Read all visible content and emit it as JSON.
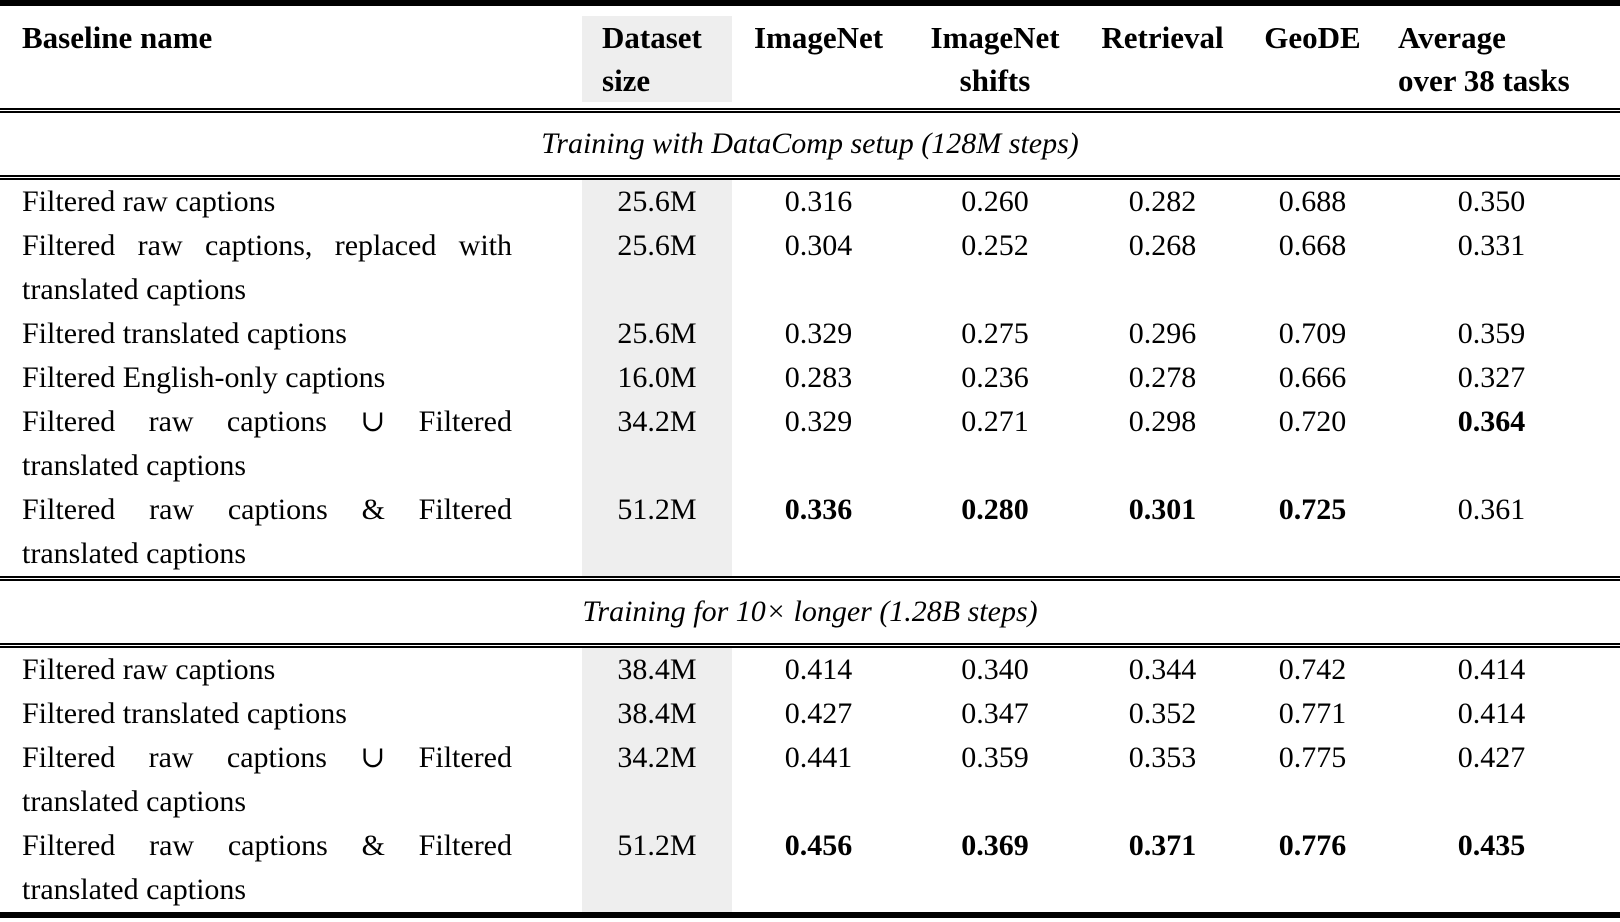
{
  "header": {
    "baseline": "Baseline name",
    "dataset_size": [
      "Dataset",
      "size"
    ],
    "imagenet": "ImageNet",
    "imagenet_shifts": [
      "ImageNet",
      "shifts"
    ],
    "retrieval": "Retrieval",
    "geode": "GeoDE",
    "average": [
      "Average",
      "over 38 tasks"
    ]
  },
  "sections": [
    {
      "title": "Training with DataComp setup (128M steps)",
      "rows": [
        {
          "name": "Filtered raw captions",
          "size": "25.6M",
          "values": [
            "0.316",
            "0.260",
            "0.282",
            "0.688",
            "0.350"
          ],
          "bold": [
            false,
            false,
            false,
            false,
            false
          ]
        },
        {
          "name": "Filtered raw captions, replaced with translated captions",
          "size": "25.6M",
          "values": [
            "0.304",
            "0.252",
            "0.268",
            "0.668",
            "0.331"
          ],
          "bold": [
            false,
            false,
            false,
            false,
            false
          ]
        },
        {
          "name": "Filtered translated captions",
          "size": "25.6M",
          "values": [
            "0.329",
            "0.275",
            "0.296",
            "0.709",
            "0.359"
          ],
          "bold": [
            false,
            false,
            false,
            false,
            false
          ]
        },
        {
          "name": "Filtered English-only captions",
          "size": "16.0M",
          "values": [
            "0.283",
            "0.236",
            "0.278",
            "0.666",
            "0.327"
          ],
          "bold": [
            false,
            false,
            false,
            false,
            false
          ]
        },
        {
          "name": "Filtered raw captions ∪ Filtered translated captions",
          "size": "34.2M",
          "values": [
            "0.329",
            "0.271",
            "0.298",
            "0.720",
            "0.364"
          ],
          "bold": [
            false,
            false,
            false,
            false,
            true
          ]
        },
        {
          "name": "Filtered raw captions & Filtered translated captions",
          "size": "51.2M",
          "values": [
            "0.336",
            "0.280",
            "0.301",
            "0.725",
            "0.361"
          ],
          "bold": [
            true,
            true,
            true,
            true,
            false
          ]
        }
      ]
    },
    {
      "title": "Training for 10× longer (1.28B steps)",
      "rows": [
        {
          "name": "Filtered raw captions",
          "size": "38.4M",
          "values": [
            "0.414",
            "0.340",
            "0.344",
            "0.742",
            "0.414"
          ],
          "bold": [
            false,
            false,
            false,
            false,
            false
          ]
        },
        {
          "name": "Filtered translated captions",
          "size": "38.4M",
          "values": [
            "0.427",
            "0.347",
            "0.352",
            "0.771",
            "0.414"
          ],
          "bold": [
            false,
            false,
            false,
            false,
            false
          ]
        },
        {
          "name": "Filtered raw captions ∪ Filtered translated captions",
          "size": "34.2M",
          "values": [
            "0.441",
            "0.359",
            "0.353",
            "0.775",
            "0.427"
          ],
          "bold": [
            false,
            false,
            false,
            false,
            false
          ]
        },
        {
          "name": "Filtered raw captions & Filtered translated captions",
          "size": "51.2M",
          "values": [
            "0.456",
            "0.369",
            "0.371",
            "0.776",
            "0.435"
          ],
          "bold": [
            true,
            true,
            true,
            true,
            true
          ]
        }
      ]
    }
  ],
  "colors": {
    "highlight_bg": "#eeeeee",
    "rule": "#000000",
    "text": "#000000"
  }
}
